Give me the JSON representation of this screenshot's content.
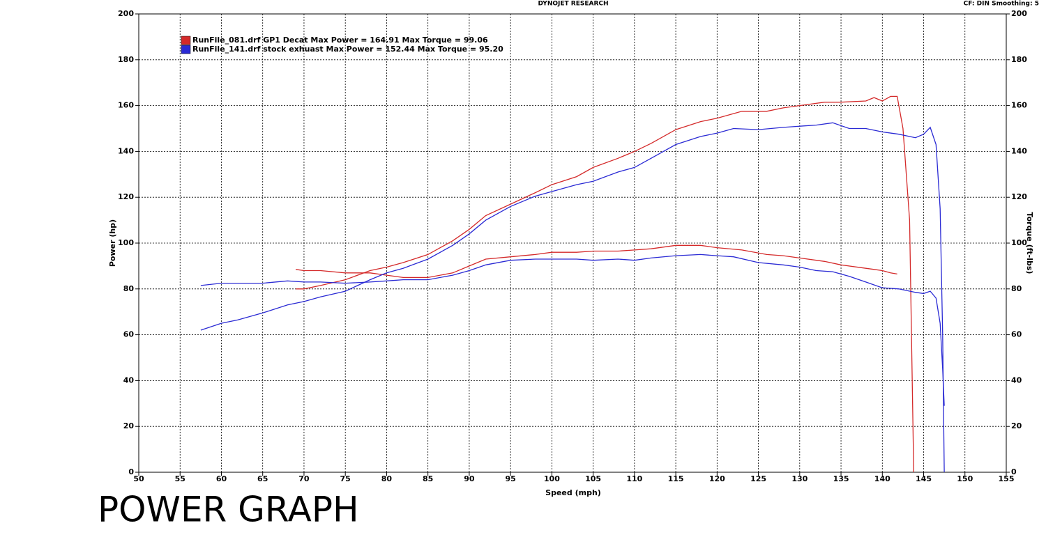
{
  "chart_data": {
    "type": "line",
    "title": "DYNOJET RESEARCH",
    "subtitle": "CF: DIN  Smoothing: 5",
    "x_label": "Speed (mph)",
    "y_label": "Power (hp)",
    "y2_label": "Torque (ft-lbs)",
    "caption": "POWER GRAPH",
    "xlim": [
      50,
      155
    ],
    "xticks": [
      50,
      55,
      60,
      65,
      70,
      75,
      80,
      85,
      90,
      95,
      100,
      105,
      110,
      115,
      120,
      125,
      130,
      135,
      140,
      145,
      150,
      155
    ],
    "ylim": [
      0,
      200
    ],
    "yticks": [
      0,
      20,
      40,
      60,
      80,
      100,
      120,
      140,
      160,
      180,
      200
    ],
    "y2lim": [
      0,
      200
    ],
    "y2ticks": [
      0,
      20,
      40,
      60,
      80,
      100,
      120,
      140,
      160,
      180,
      200
    ],
    "grid": true,
    "legend": "upper left",
    "series": [
      {
        "name": "RunFile_081.drf  GP1 Decat Max Power = 164.91 Max Torque = 99.06",
        "color": "#d42a2a",
        "x": [
          69,
          70,
          72,
          75,
          78,
          80,
          82,
          85,
          88,
          90,
          92,
          95,
          98,
          100,
          103,
          105,
          108,
          110,
          112,
          115,
          118,
          120,
          123,
          126,
          128,
          130,
          133,
          135,
          138,
          139,
          140,
          141,
          141.8,
          142.5,
          143.3,
          143.8
        ],
        "power": [
          80,
          80,
          81.5,
          84,
          88,
          89.5,
          91.5,
          95,
          101,
          106,
          112,
          117,
          122,
          125.5,
          129,
          133,
          137,
          140,
          143.5,
          149.5,
          153,
          154.5,
          157.5,
          157.5,
          159,
          160,
          161.5,
          161.5,
          162,
          163.5,
          162,
          164,
          164,
          150,
          110,
          0
        ],
        "torque": [
          88.5,
          88,
          88,
          87,
          87,
          86,
          85,
          85,
          87,
          90,
          93,
          94,
          95,
          96,
          96,
          96.5,
          96.5,
          97,
          97.5,
          99,
          99,
          98,
          97,
          95,
          94.5,
          93.5,
          92,
          90.5,
          89,
          88.5,
          88,
          87,
          86.5,
          null,
          null,
          null
        ]
      },
      {
        "name": "RunFile_141.drf stock exhuast Max Power = 152.44 Max Torque = 95.20",
        "color": "#2a2ad4",
        "x": [
          57.5,
          60,
          62,
          65,
          68,
          70,
          72,
          75,
          78,
          80,
          82,
          85,
          88,
          90,
          92,
          95,
          98,
          100,
          103,
          105,
          108,
          110,
          112,
          115,
          118,
          120,
          122,
          125,
          128,
          130,
          132,
          134,
          136,
          138,
          140,
          142,
          144,
          145,
          145.8,
          146.5,
          147,
          147.3,
          147.5
        ],
        "power": [
          62,
          65,
          66.5,
          69.5,
          73,
          74.5,
          76.5,
          79,
          84,
          87,
          89,
          93,
          99,
          104,
          110,
          116,
          120.5,
          122.5,
          125.5,
          127,
          131,
          133,
          137,
          143,
          146.5,
          148,
          150,
          149.5,
          150.5,
          151,
          151.5,
          152.5,
          150,
          150,
          148.5,
          147.5,
          146,
          147.5,
          150.5,
          143,
          115,
          60,
          0
        ],
        "torque": [
          81.5,
          82.5,
          82.5,
          82.5,
          83.5,
          83,
          83,
          82.5,
          83,
          83.5,
          84,
          84,
          86,
          88,
          90.5,
          92.5,
          93,
          93,
          93,
          92.5,
          93,
          92.5,
          93.5,
          94.5,
          95,
          94.5,
          94,
          91.5,
          90.5,
          89.5,
          88,
          87.5,
          85.5,
          83,
          80.5,
          80,
          78.5,
          78,
          79,
          76,
          65,
          45,
          29
        ]
      }
    ]
  }
}
